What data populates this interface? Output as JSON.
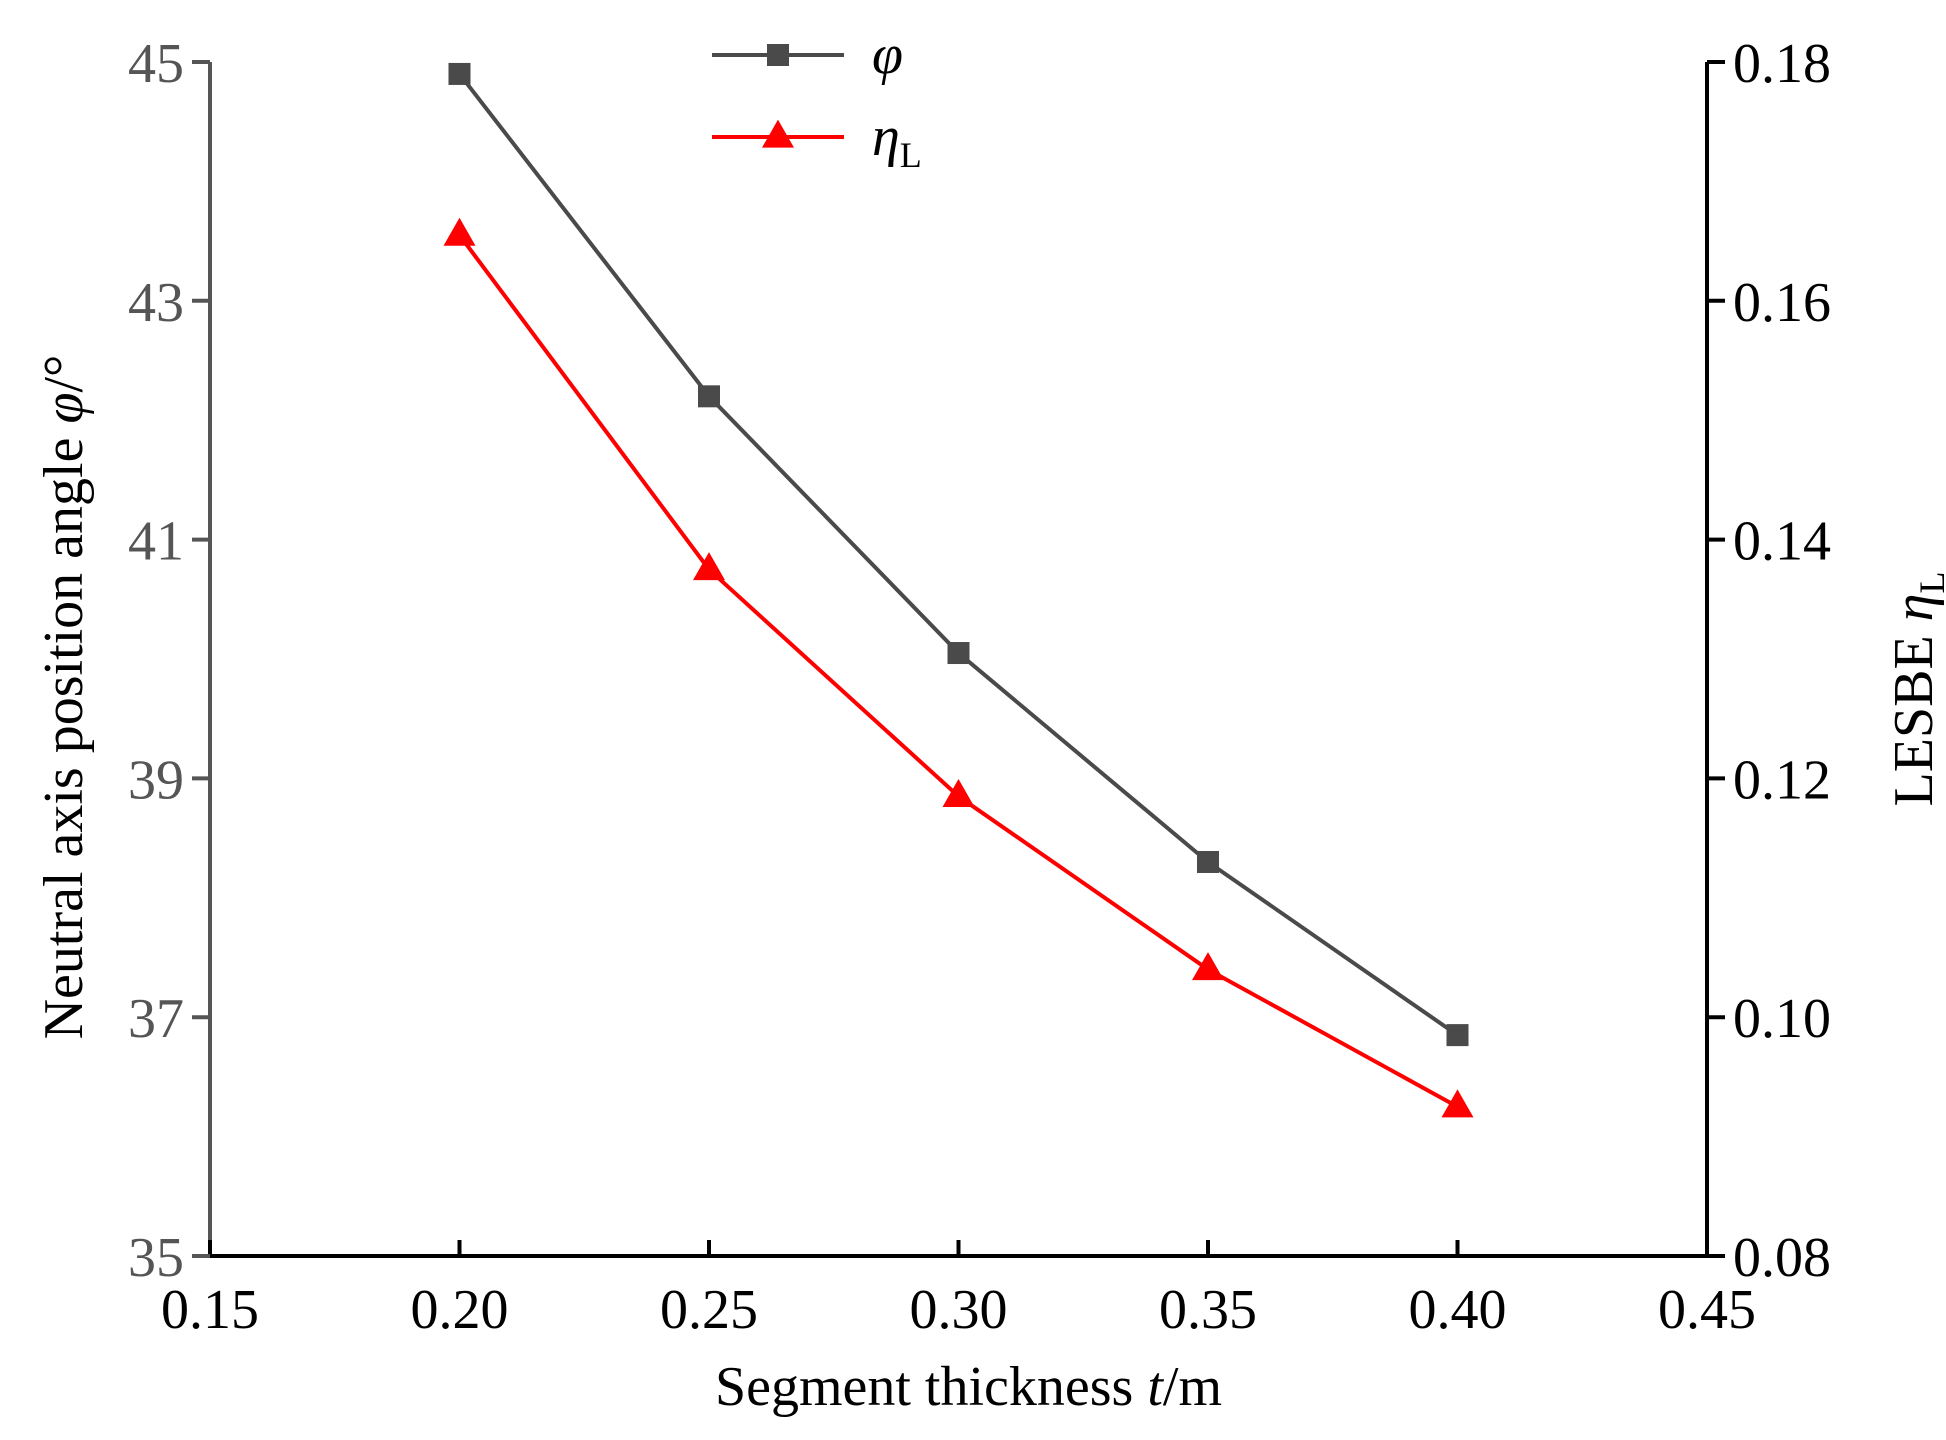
{
  "chart_data": {
    "type": "line",
    "title": "",
    "xlabel": {
      "prefix": "Segment thickness  ",
      "var": "t",
      "suffix": "/m"
    },
    "ylabel_left": {
      "prefix": "Neutral axis position angle  ",
      "var": "φ",
      "suffix": "/°"
    },
    "ylabel_right": {
      "prefix": "LESBE  ",
      "var": "η",
      "sub": "L"
    },
    "xlim": [
      0.15,
      0.45
    ],
    "ylim_left": [
      35,
      45
    ],
    "ylim_right": [
      0.08,
      0.18
    ],
    "x_ticks": [
      "0.15",
      "0.20",
      "0.25",
      "0.30",
      "0.35",
      "0.40",
      "0.45"
    ],
    "y_left_ticks": [
      "35",
      "37",
      "39",
      "41",
      "43",
      "45"
    ],
    "y_right_ticks": [
      "0.08",
      "0.10",
      "0.12",
      "0.14",
      "0.16",
      "0.18"
    ],
    "x": [
      0.2,
      0.25,
      0.3,
      0.35,
      0.4
    ],
    "series": [
      {
        "name": "φ",
        "axis": "left",
        "marker": "square",
        "color": "#4a4a4a",
        "values": [
          44.9,
          42.2,
          40.05,
          38.3,
          36.85
        ]
      },
      {
        "name": "η",
        "sub": "L",
        "axis": "right",
        "marker": "triangle",
        "color": "#ff0000",
        "values": [
          0.1655,
          0.1375,
          0.1185,
          0.104,
          0.0925
        ]
      }
    ],
    "legend_position": "top-center",
    "grid": false
  }
}
